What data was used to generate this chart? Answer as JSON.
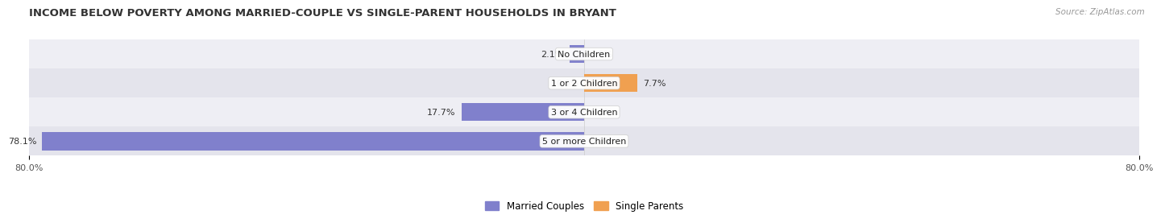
{
  "title": "INCOME BELOW POVERTY AMONG MARRIED-COUPLE VS SINGLE-PARENT HOUSEHOLDS IN BRYANT",
  "source": "Source: ZipAtlas.com",
  "categories": [
    "No Children",
    "1 or 2 Children",
    "3 or 4 Children",
    "5 or more Children"
  ],
  "married_values": [
    2.1,
    0.0,
    17.7,
    78.1
  ],
  "single_values": [
    0.0,
    7.7,
    0.0,
    0.0
  ],
  "xlim": [
    -80.0,
    80.0
  ],
  "married_color": "#8080cc",
  "single_color": "#f0a050",
  "row_bg_even": "#eeeef4",
  "row_bg_odd": "#e4e4ec",
  "bar_height": 0.62,
  "title_fontsize": 9.5,
  "label_fontsize": 8.0,
  "tick_fontsize": 8.0,
  "source_fontsize": 7.5,
  "legend_fontsize": 8.5,
  "cat_label_fontsize": 8.0
}
